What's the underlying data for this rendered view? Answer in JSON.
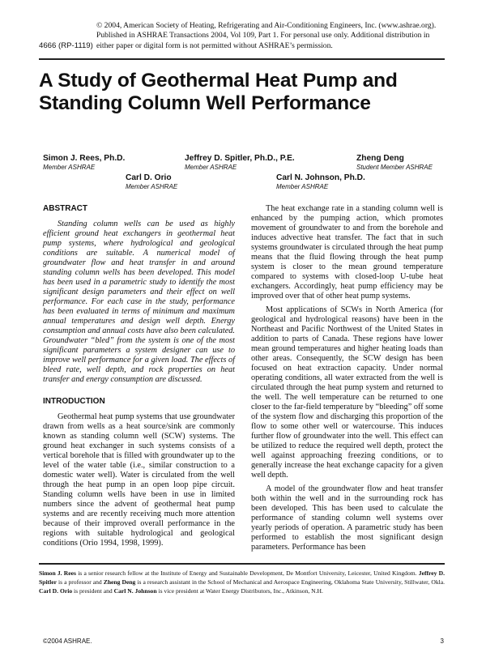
{
  "header": {
    "copyright_lines": [
      "© 2004, American Society of Heating, Refrigerating and Air-Conditioning Engineers, Inc. (www.ashrae.org).",
      "Published in ASHRAE Transactions 2004, Vol 109, Part 1. For personal use only. Additional distribution in",
      "either paper or digital form is not permitted without ASHRAE’s permission."
    ],
    "paper_number": "4666 (RP-1119)"
  },
  "title_lines": [
    "A Study of Geothermal Heat Pump and",
    "Standing Column Well Performance"
  ],
  "authors": [
    {
      "name": "Simon J. Rees, Ph.D.",
      "affiliation": "Member ASHRAE"
    },
    {
      "name": "Jeffrey D. Spitler, Ph.D., P.E.",
      "affiliation": "Member ASHRAE"
    },
    {
      "name": "Zheng Deng",
      "affiliation": "Student Member ASHRAE"
    },
    {
      "name": "Carl D. Orio",
      "affiliation": "Member ASHRAE"
    },
    {
      "name": "Carl N. Johnson, Ph.D.",
      "affiliation": "Member ASHRAE"
    }
  ],
  "abstract": {
    "heading": "ABSTRACT",
    "text": "Standing column wells can be used as highly efficient ground heat exchangers in geothermal heat pump systems, where hydrological and geological conditions are suitable. A numerical model of groundwater flow and heat transfer in and around standing column wells has been developed. This model has been used in a parametric study to identify the most significant design parameters and their effect on well performance. For each case in the study, performance has been evaluated in terms of minimum and maximum annual temperatures and design well depth. Energy consumption and annual costs have also been calculated. Groundwater “bled” from the system is one of the most significant parameters a system designer can use to improve well performance for a given load. The effects of bleed rate, well depth, and rock properties on heat transfer and energy consumption are discussed."
  },
  "introduction": {
    "heading": "INTRODUCTION",
    "paragraphs": [
      "Geothermal heat pump systems that use groundwater drawn from wells as a heat source/sink are commonly known as standing column well (SCW) systems. The ground heat exchanger in such systems consists of a vertical borehole that is filled with groundwater up to the level of the water table (i.e., similar construction to a domestic water well). Water is circulated from the well through the heat pump in an open loop pipe circuit. Standing column wells have been in use in limited numbers since the advent of geothermal heat pump systems and are recently receiving much more attention because of their improved overall performance in the regions with suitable hydrological and geological conditions (Orio 1994, 1998, 1999).",
      "The heat exchange rate in a standing column well is enhanced by the pumping action, which promotes movement of groundwater to and from the borehole and induces advective heat transfer. The fact that in such systems groundwater is circulated through the heat pump means that the fluid flowing through the heat pump system is closer to the mean ground temperature compared to systems with closed-loop U-tube heat exchangers. Accordingly, heat pump efficiency may be improved over that of other heat pump systems.",
      "Most applications of SCWs in North America (for geological and hydrological reasons) have been in the Northeast and Pacific Northwest of the United States in addition to parts of Canada. These regions have lower mean ground temperatures and higher heating loads than other areas. Consequently, the SCW design has been focused on heat extraction capacity. Under normal operating conditions, all water extracted from the well is circulated through the heat pump system and returned to the well. The well temperature can be returned to one closer to the far-field temperature by “bleeding” off some of the system flow and discharging this proportion of the flow to some other well or watercourse. This induces further flow of groundwater into the well. This effect can be utilized to reduce the required well depth, protect the well against approaching freezing conditions, or to generally increase the heat exchange capacity for a given well depth.",
      "A model of the groundwater flow and heat transfer both within the well and in the surrounding rock has been developed. This has been used to calculate the performance of standing column well systems over yearly periods of operation. A parametric study has been performed to establish the most significant design parameters. Performance has been"
    ]
  },
  "footnote": [
    {
      "b": "Simon J. Rees"
    },
    {
      "t": " is a senior research fellow at the Institute of Energy and Sustainable Development, De Montfort University, Leicester, United Kingdom. "
    },
    {
      "b": "Jeffrey D. Spitler"
    },
    {
      "t": " is a professor and "
    },
    {
      "b": "Zheng Deng"
    },
    {
      "t": " is a research assistant in the School of Mechanical and Aerospace Engineering, Oklahoma State University, Stillwater, Okla. "
    },
    {
      "b": "Carl D. Orio"
    },
    {
      "t": " is president and "
    },
    {
      "b": "Carl N. Johnson"
    },
    {
      "t": " is vice president at Water Energy Distributors, Inc., Atkinson, N.H."
    }
  ],
  "footer": {
    "left": "©2004 ASHRAE.",
    "page_number": "3"
  }
}
